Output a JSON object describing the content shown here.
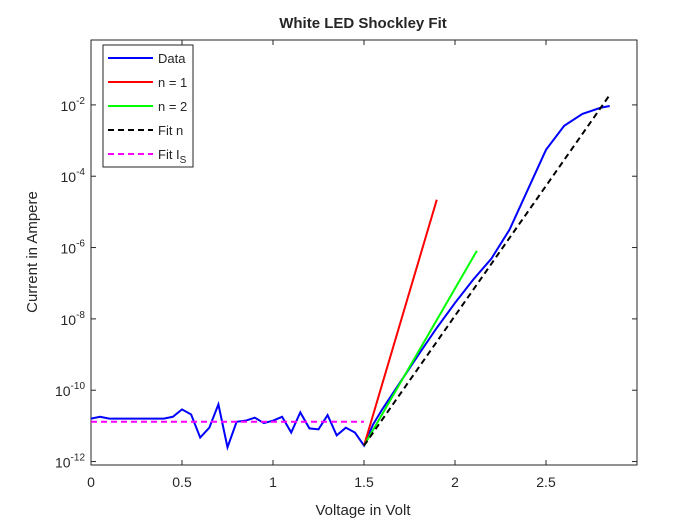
{
  "chart_data": {
    "type": "line",
    "title": "White LED Shockley Fit",
    "xlabel": "Voltage in Volt",
    "ylabel": "Current in Ampere",
    "yscale": "log",
    "xlim": [
      0,
      3
    ],
    "ylim": [
      8e-13,
      0.66
    ],
    "xticks": [
      0,
      0.5,
      1,
      1.5,
      2,
      2.5
    ],
    "yticks": [
      {
        "value": 1e-12,
        "label": "10^-12"
      },
      {
        "value": 1e-10,
        "label": "10^-10"
      },
      {
        "value": 1e-08,
        "label": "10^-8"
      },
      {
        "value": 1e-06,
        "label": "10^-6"
      },
      {
        "value": 0.0001,
        "label": "10^-4"
      },
      {
        "value": 0.01,
        "label": "10^-2"
      }
    ],
    "legend": "upper left",
    "series": [
      {
        "name": "Data",
        "color": "#0000ff",
        "dash": false,
        "x": [
          0,
          0.05,
          0.1,
          0.2,
          0.3,
          0.4,
          0.45,
          0.5,
          0.55,
          0.6,
          0.65,
          0.7,
          0.75,
          0.8,
          0.85,
          0.9,
          0.95,
          1.0,
          1.05,
          1.1,
          1.15,
          1.2,
          1.25,
          1.3,
          1.35,
          1.4,
          1.45,
          1.5,
          1.55,
          1.6,
          1.7,
          1.8,
          1.9,
          2.0,
          2.1,
          2.2,
          2.3,
          2.4,
          2.5,
          2.6,
          2.7,
          2.8,
          2.85
        ],
        "values": [
          1.6e-11,
          1.8e-11,
          1.6e-11,
          1.6e-11,
          1.6e-11,
          1.6e-11,
          1.8e-11,
          2.9e-11,
          2.1e-11,
          4.7e-12,
          8.9e-12,
          4e-11,
          2.5e-12,
          1.3e-11,
          1.4e-11,
          1.7e-11,
          1.2e-11,
          1.4e-11,
          1.8e-11,
          6.5e-12,
          2.4e-11,
          8.5e-12,
          8e-12,
          2e-11,
          5.4e-12,
          8.9e-12,
          6.5e-12,
          2.8e-12,
          1.1e-11,
          2.9e-11,
          1.7e-10,
          1e-09,
          5.6e-09,
          2.8e-08,
          1.26e-07,
          4.9e-07,
          3.2e-06,
          4.2e-05,
          0.00055,
          0.0026,
          0.0056,
          0.0083,
          0.0093
        ]
      },
      {
        "name": "n = 1",
        "color": "#ff0000",
        "dash": false,
        "x": [
          1.5,
          1.9
        ],
        "values": [
          2.8e-12,
          2.2e-05
        ]
      },
      {
        "name": "n = 2",
        "color": "#00ff00",
        "dash": false,
        "x": [
          1.5,
          2.12
        ],
        "values": [
          2.8e-12,
          8.1e-07
        ]
      },
      {
        "name": "Fit n",
        "color": "#000000",
        "dash": true,
        "x": [
          1.5,
          2.85
        ],
        "values": [
          2.8e-12,
          0.019
        ]
      },
      {
        "name": "Fit I_S",
        "color": "#ff00ff",
        "dash": true,
        "x": [
          0,
          1.5
        ],
        "values": [
          1.3e-11,
          1.3e-11
        ]
      }
    ]
  }
}
